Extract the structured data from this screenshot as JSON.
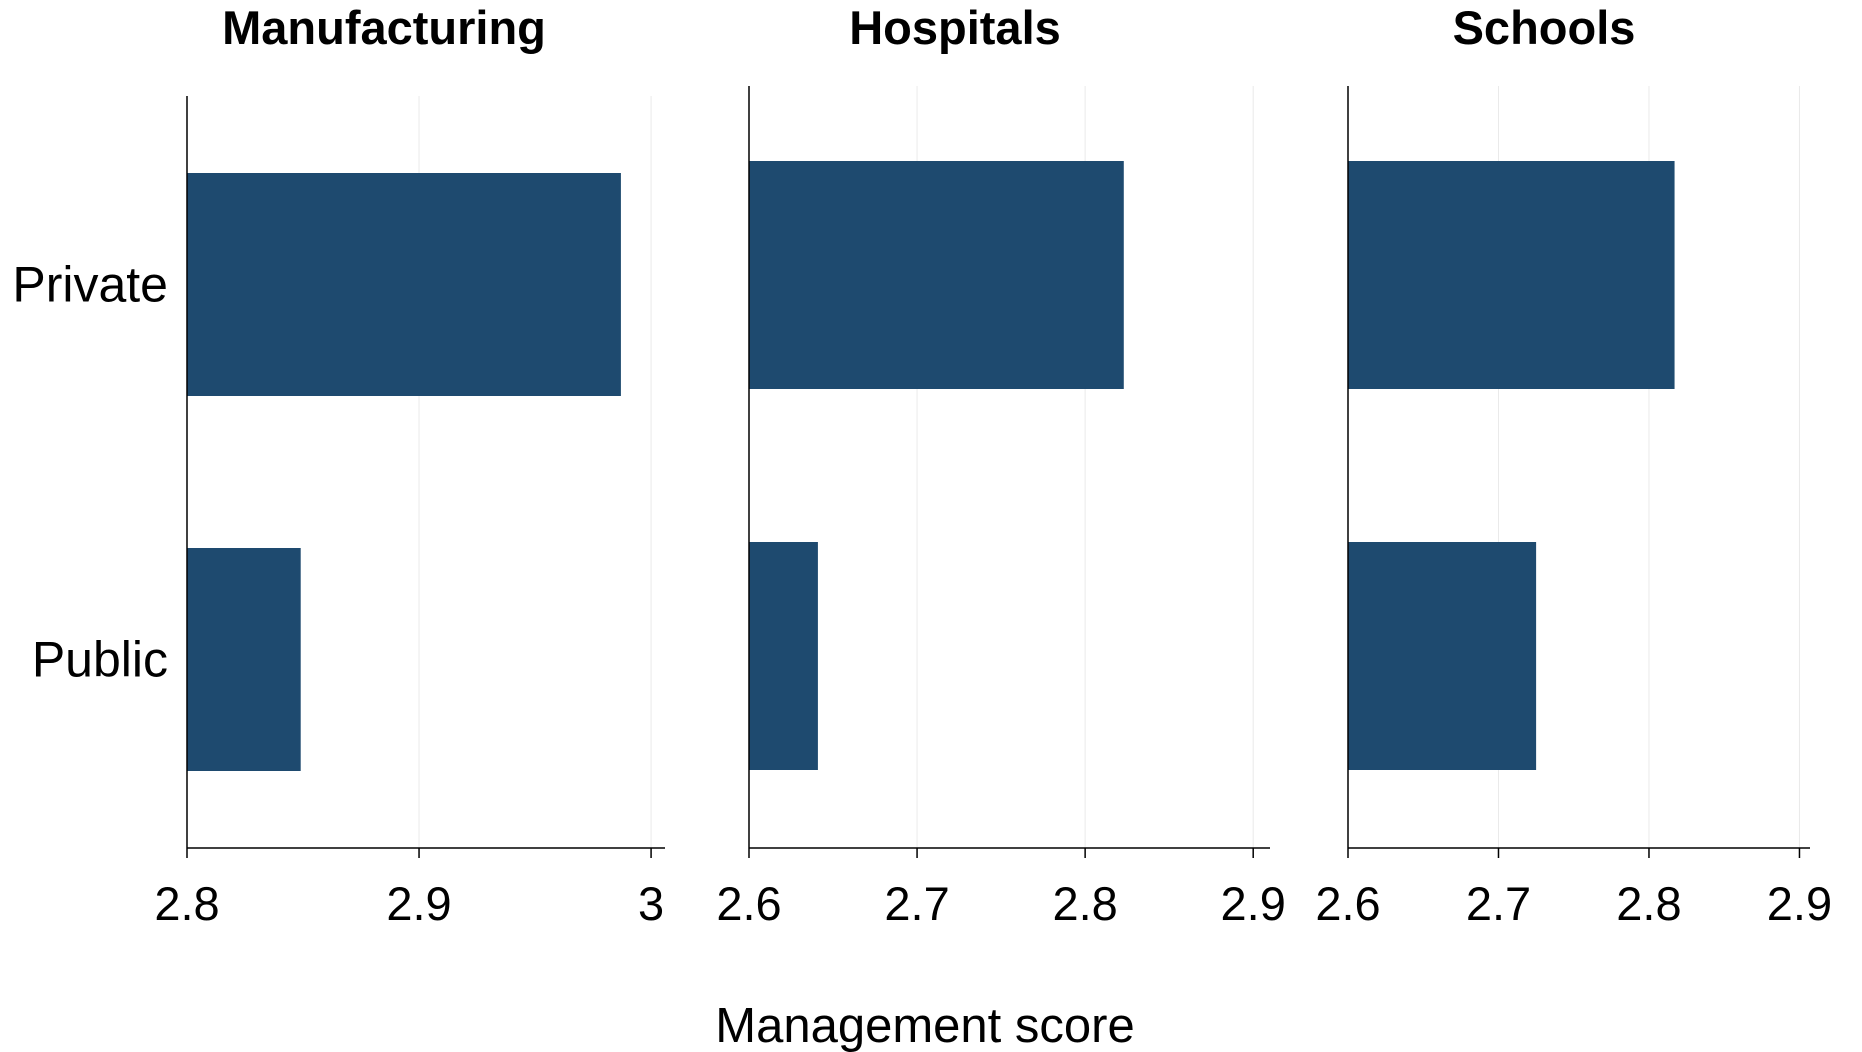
{
  "chart_data": {
    "type": "bar",
    "orientation": "horizontal",
    "xlabel": "Management score",
    "categories": [
      "Private",
      "Public"
    ],
    "bar_color": "#1e4a6f",
    "grid": true,
    "panels": [
      {
        "title": "Manufacturing",
        "values": [
          2.987,
          2.849
        ],
        "xlim": [
          2.8,
          3.006
        ],
        "ticks": [
          2.8,
          2.9,
          3
        ],
        "tick_labels": [
          "2.8",
          "2.9",
          "3"
        ]
      },
      {
        "title": "Hospitals",
        "values": [
          2.823,
          2.641
        ],
        "xlim": [
          2.6,
          2.91
        ],
        "ticks": [
          2.6,
          2.7,
          2.8,
          2.9
        ],
        "tick_labels": [
          "2.6",
          "2.7",
          "2.8",
          "2.9"
        ]
      },
      {
        "title": "Schools",
        "values": [
          2.817,
          2.725
        ],
        "xlim": [
          2.6,
          2.907
        ],
        "ticks": [
          2.6,
          2.7,
          2.8,
          2.9
        ],
        "tick_labels": [
          "2.6",
          "2.7",
          "2.8",
          "2.9"
        ]
      }
    ]
  }
}
